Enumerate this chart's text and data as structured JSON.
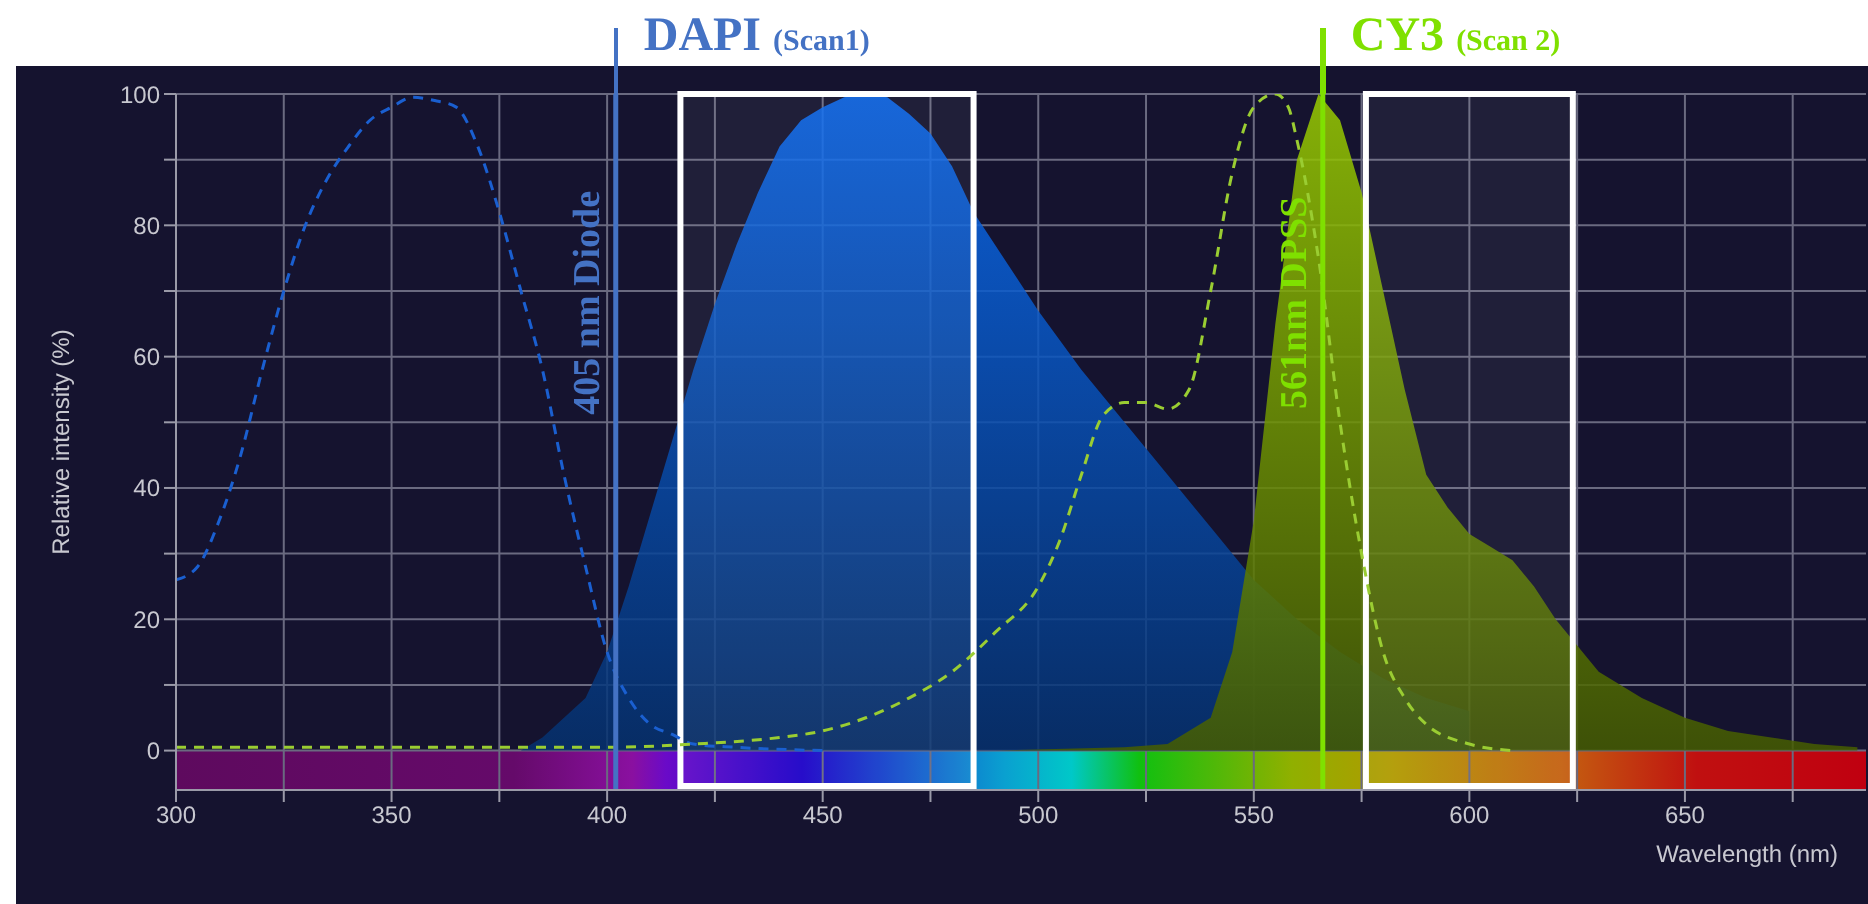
{
  "chart_data": {
    "type": "line",
    "xlabel": "Wavelength (nm)",
    "ylabel": "Relative intensity (%)",
    "xlim": [
      300,
      692
    ],
    "xticks": [
      300,
      {
        "value": 325,
        "label": null
      },
      350,
      {
        "value": 375,
        "label": null
      },
      400,
      {
        "value": 425,
        "label": null
      },
      450,
      {
        "value": 475,
        "label": null
      },
      500,
      {
        "value": 525,
        "label": null
      },
      550,
      {
        "value": 575,
        "label": null
      },
      600,
      {
        "value": 625,
        "label": null
      },
      650,
      {
        "value": 675,
        "label": null
      }
    ],
    "ylim": [
      -6,
      100
    ],
    "yticks": [
      0,
      {
        "value": 10,
        "label": null
      },
      20,
      {
        "value": 30,
        "label": null
      },
      40,
      {
        "value": 50,
        "label": null
      },
      60,
      {
        "value": 70,
        "label": null
      },
      80,
      {
        "value": 90,
        "label": null
      },
      100
    ],
    "grid": true,
    "series": [
      {
        "line_style": "dashed",
        "color": "#1a5fd0",
        "x": [
          300,
          305,
          310,
          315,
          320,
          325,
          330,
          335,
          340,
          345,
          350,
          355,
          360,
          365,
          370,
          375,
          380,
          385,
          390,
          395,
          400,
          405,
          410,
          415,
          420,
          430,
          450
        ],
        "values": [
          26,
          28,
          35,
          45,
          58,
          70,
          80,
          87,
          92,
          96,
          98,
          99.5,
          99,
          98,
          92,
          82,
          70,
          58,
          42,
          28,
          15,
          8,
          4,
          2.5,
          1,
          0.5,
          0
        ]
      },
      {
        "type": "area",
        "color": "#0a6cf5",
        "x": [
          380,
          385,
          390,
          395,
          400,
          405,
          410,
          415,
          420,
          425,
          430,
          435,
          440,
          445,
          450,
          455,
          460,
          465,
          470,
          475,
          480,
          485,
          490,
          495,
          500,
          510,
          520,
          530,
          540,
          550,
          560,
          570,
          580,
          590,
          600
        ],
        "values": [
          0,
          2,
          5,
          8,
          15,
          25,
          36,
          47,
          58,
          68,
          77,
          85,
          92,
          96,
          98,
          99.5,
          100,
          99.5,
          97,
          94,
          89,
          82,
          77,
          72,
          67,
          58,
          50,
          42,
          34,
          26,
          20,
          15,
          11,
          8,
          6
        ]
      },
      {
        "line_style": "dashed",
        "color": "#9acd32",
        "x": [
          300,
          400,
          420,
          440,
          450,
          460,
          470,
          480,
          490,
          500,
          505,
          510,
          515,
          520,
          525,
          530,
          535,
          540,
          545,
          550,
          555,
          558,
          560,
          565,
          570,
          575,
          580,
          585,
          590,
          600,
          610
        ],
        "values": [
          0.5,
          0.5,
          1,
          2,
          3,
          5,
          8,
          12,
          18,
          25,
          32,
          42,
          51,
          53,
          53,
          52,
          55,
          70,
          88,
          98,
          100,
          98,
          93,
          75,
          50,
          30,
          15,
          8,
          4,
          1,
          0
        ]
      },
      {
        "type": "area",
        "color": "#99cc00",
        "x": [
          490,
          520,
          530,
          540,
          545,
          550,
          555,
          560,
          565,
          570,
          575,
          580,
          585,
          590,
          595,
          600,
          605,
          610,
          615,
          620,
          625,
          630,
          640,
          650,
          660,
          670,
          680,
          690
        ],
        "values": [
          0,
          0.5,
          1,
          5,
          15,
          35,
          65,
          90,
          100,
          96,
          85,
          70,
          55,
          42,
          37,
          33,
          31,
          29,
          25,
          20,
          16,
          12,
          8,
          5,
          3,
          2,
          1,
          0.5
        ]
      }
    ],
    "ref_lines": [
      {
        "axis": "x",
        "value": 402,
        "label": "405 nm Diode",
        "color": "#4472c4"
      },
      {
        "axis": "x",
        "value": 566,
        "label": "561nm DPSS",
        "color": "#7fe000"
      }
    ],
    "bands": [
      {
        "axis": "x",
        "from": 417,
        "to": 485,
        "label": null,
        "color": "#ffffff"
      },
      {
        "axis": "x",
        "from": 576,
        "to": 624,
        "label": null,
        "color": "#ffffff"
      }
    ],
    "annotations": [
      "DAPI $_{(Scan1)}$",
      "CY3 $_{(Scan 2)}$"
    ]
  }
}
